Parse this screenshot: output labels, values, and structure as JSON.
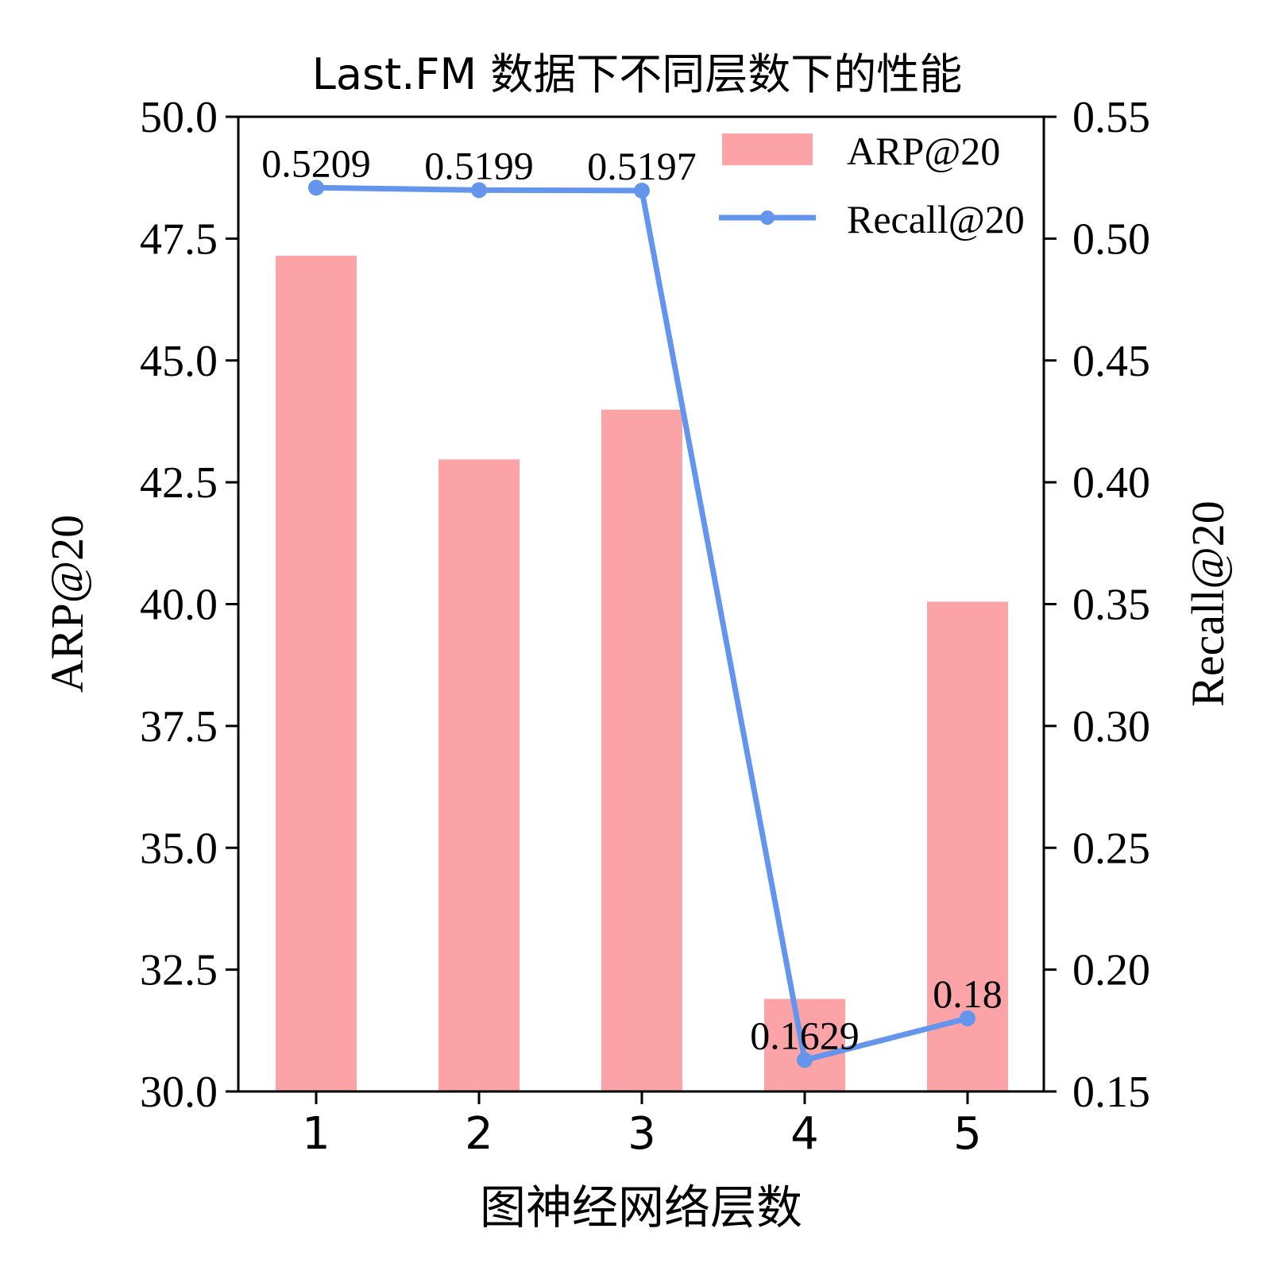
{
  "chart_data": {
    "type": "bar",
    "title": "Last.FM 数据下不同层数下的性能",
    "xlabel": "图神经网络层数",
    "ylabel_left": "ARP@20",
    "ylabel_right": "Recall@20",
    "categories": [
      "1",
      "2",
      "3",
      "4",
      "5"
    ],
    "ylim_left": [
      30.0,
      50.0
    ],
    "ylim_right": [
      0.15,
      0.55
    ],
    "yticks_left": [
      "30.0",
      "32.5",
      "35.0",
      "37.5",
      "40.0",
      "42.5",
      "45.0",
      "47.5",
      "50.0"
    ],
    "yticks_right": [
      "0.15",
      "0.20",
      "0.25",
      "0.30",
      "0.35",
      "0.40",
      "0.45",
      "0.50",
      "0.55"
    ],
    "grid": false,
    "legend_position": "top-right",
    "series": [
      {
        "name": "ARP@20",
        "kind": "bar",
        "axis": "left",
        "color": "#fca3a8",
        "values": [
          47.15,
          42.97,
          43.99,
          31.9,
          40.05
        ]
      },
      {
        "name": "Recall@20",
        "kind": "line",
        "axis": "right",
        "color": "#6495ed",
        "values": [
          0.5209,
          0.5199,
          0.5197,
          0.1629,
          0.18
        ],
        "labels": [
          "0.5209",
          "0.5199",
          "0.5197",
          "0.1629",
          "0.18"
        ]
      }
    ]
  }
}
